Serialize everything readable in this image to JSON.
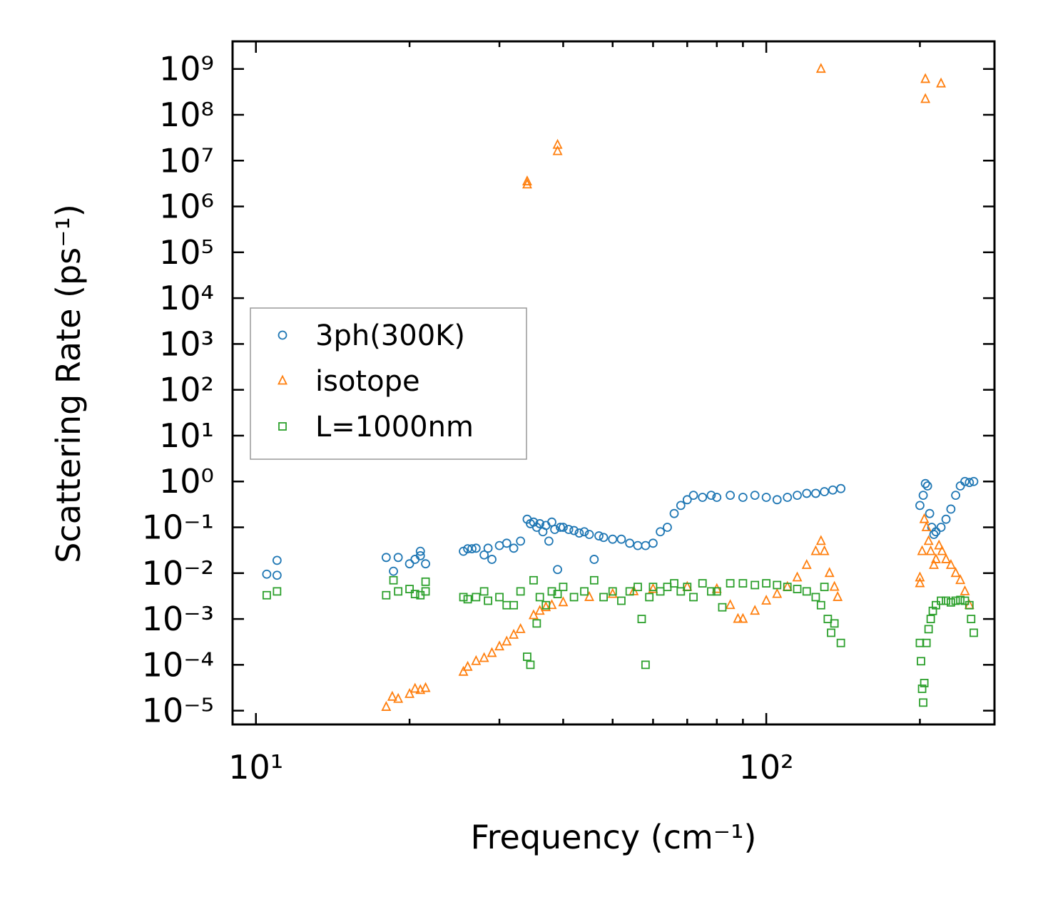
{
  "chart_data": {
    "type": "scatter",
    "title": "",
    "xlabel": "Frequency (cm⁻¹)",
    "ylabel": "Scattering Rate (ps⁻¹)",
    "xscale": "log",
    "yscale": "log",
    "xlim": [
      9.0,
      280
    ],
    "ylim": [
      5e-06,
      4000000000.0
    ],
    "x_ticks": [
      {
        "value": 10,
        "label": "10¹"
      },
      {
        "value": 100,
        "label": "10²"
      }
    ],
    "y_ticks": [
      {
        "value": 1e-05,
        "label": "10⁻⁵"
      },
      {
        "value": 0.0001,
        "label": "10⁻⁴"
      },
      {
        "value": 0.001,
        "label": "10⁻³"
      },
      {
        "value": 0.01,
        "label": "10⁻²"
      },
      {
        "value": 0.1,
        "label": "10⁻¹"
      },
      {
        "value": 1,
        "label": "10⁰"
      },
      {
        "value": 10,
        "label": "10¹"
      },
      {
        "value": 100,
        "label": "10²"
      },
      {
        "value": 1000.0,
        "label": "10³"
      },
      {
        "value": 10000.0,
        "label": "10⁴"
      },
      {
        "value": 100000.0,
        "label": "10⁵"
      },
      {
        "value": 1000000.0,
        "label": "10⁶"
      },
      {
        "value": 10000000.0,
        "label": "10⁷"
      },
      {
        "value": 100000000.0,
        "label": "10⁸"
      },
      {
        "value": 1000000000.0,
        "label": "10⁹"
      }
    ],
    "legend_position": "center-left",
    "series": [
      {
        "name": "3ph(300K)",
        "marker": "circle",
        "color": "#1f77b4",
        "points": [
          [
            10.5,
            0.0095
          ],
          [
            11.0,
            0.019
          ],
          [
            11.0,
            0.009
          ],
          [
            18.0,
            0.022
          ],
          [
            18.6,
            0.011
          ],
          [
            19.0,
            0.022
          ],
          [
            20.0,
            0.016
          ],
          [
            20.5,
            0.02
          ],
          [
            21.0,
            0.03
          ],
          [
            21.0,
            0.024
          ],
          [
            21.5,
            0.016
          ],
          [
            25.5,
            0.03
          ],
          [
            26.0,
            0.034
          ],
          [
            26.5,
            0.034
          ],
          [
            27.0,
            0.035
          ],
          [
            28.0,
            0.025
          ],
          [
            28.5,
            0.035
          ],
          [
            29.0,
            0.02
          ],
          [
            30.0,
            0.04
          ],
          [
            31.0,
            0.045
          ],
          [
            32.0,
            0.035
          ],
          [
            33.0,
            0.05
          ],
          [
            34.0,
            0.15
          ],
          [
            34.5,
            0.12
          ],
          [
            35.0,
            0.13
          ],
          [
            35.5,
            0.1
          ],
          [
            36.0,
            0.12
          ],
          [
            36.5,
            0.08
          ],
          [
            37.0,
            0.11
          ],
          [
            37.5,
            0.05
          ],
          [
            38.0,
            0.13
          ],
          [
            38.5,
            0.09
          ],
          [
            39.0,
            0.012
          ],
          [
            39.5,
            0.1
          ],
          [
            40.0,
            0.1
          ],
          [
            41.0,
            0.09
          ],
          [
            42.0,
            0.085
          ],
          [
            43.0,
            0.075
          ],
          [
            44.0,
            0.08
          ],
          [
            45.0,
            0.07
          ],
          [
            46.0,
            0.02
          ],
          [
            47.0,
            0.065
          ],
          [
            48.0,
            0.06
          ],
          [
            50.0,
            0.055
          ],
          [
            52.0,
            0.055
          ],
          [
            54.0,
            0.045
          ],
          [
            56.0,
            0.04
          ],
          [
            58.0,
            0.04
          ],
          [
            60.0,
            0.045
          ],
          [
            62.0,
            0.08
          ],
          [
            64.0,
            0.1
          ],
          [
            66.0,
            0.2
          ],
          [
            68.0,
            0.3
          ],
          [
            70.0,
            0.4
          ],
          [
            72.0,
            0.5
          ],
          [
            75.0,
            0.45
          ],
          [
            78.0,
            0.5
          ],
          [
            80.0,
            0.45
          ],
          [
            85.0,
            0.5
          ],
          [
            90.0,
            0.45
          ],
          [
            95.0,
            0.5
          ],
          [
            100.0,
            0.45
          ],
          [
            105.0,
            0.4
          ],
          [
            110.0,
            0.45
          ],
          [
            115.0,
            0.5
          ],
          [
            120.0,
            0.55
          ],
          [
            125.0,
            0.55
          ],
          [
            130.0,
            0.6
          ],
          [
            135.0,
            0.65
          ],
          [
            140.0,
            0.7
          ],
          [
            200.0,
            0.3
          ],
          [
            203.0,
            0.5
          ],
          [
            205.0,
            0.9
          ],
          [
            207.0,
            0.8
          ],
          [
            209.0,
            0.2
          ],
          [
            211.0,
            0.1
          ],
          [
            213.0,
            0.07
          ],
          [
            215.0,
            0.08
          ],
          [
            220.0,
            0.1
          ],
          [
            225.0,
            0.15
          ],
          [
            230.0,
            0.25
          ],
          [
            235.0,
            0.5
          ],
          [
            240.0,
            0.8
          ],
          [
            245.0,
            1.0
          ],
          [
            250.0,
            0.95
          ],
          [
            255.0,
            1.0
          ]
        ]
      },
      {
        "name": "isotope",
        "marker": "triangle",
        "color": "#ff7f0e",
        "points": [
          [
            18.0,
            1.2e-05
          ],
          [
            18.5,
            2e-05
          ],
          [
            19.0,
            1.8e-05
          ],
          [
            20.0,
            2.3e-05
          ],
          [
            20.5,
            3e-05
          ],
          [
            21.0,
            2.8e-05
          ],
          [
            21.5,
            3.1e-05
          ],
          [
            25.5,
            7e-05
          ],
          [
            26.0,
            9e-05
          ],
          [
            27.0,
            0.00012
          ],
          [
            28.0,
            0.00014
          ],
          [
            29.0,
            0.00018
          ],
          [
            30.0,
            0.00025
          ],
          [
            31.0,
            0.00032
          ],
          [
            32.0,
            0.00045
          ],
          [
            33.0,
            0.0006
          ],
          [
            34.0,
            3500000.0
          ],
          [
            34.0,
            3000000.0
          ],
          [
            35.0,
            0.0012
          ],
          [
            36.0,
            0.0015
          ],
          [
            37.0,
            0.0018
          ],
          [
            38.0,
            0.002
          ],
          [
            39.0,
            22000000.0
          ],
          [
            39.0,
            16000000.0
          ],
          [
            40.0,
            0.0023
          ],
          [
            45.0,
            0.003
          ],
          [
            50.0,
            0.0035
          ],
          [
            55.0,
            0.004
          ],
          [
            60.0,
            0.0045
          ],
          [
            70.0,
            0.005
          ],
          [
            80.0,
            0.0045
          ],
          [
            85.0,
            0.002
          ],
          [
            88.0,
            0.001
          ],
          [
            90.0,
            0.001
          ],
          [
            95.0,
            0.0015
          ],
          [
            100.0,
            0.0025
          ],
          [
            105.0,
            0.0035
          ],
          [
            110.0,
            0.005
          ],
          [
            115.0,
            0.008
          ],
          [
            120.0,
            0.015
          ],
          [
            125.0,
            0.03
          ],
          [
            128.0,
            0.05
          ],
          [
            130.0,
            0.03
          ],
          [
            133.0,
            0.01
          ],
          [
            136.0,
            0.005
          ],
          [
            138.0,
            0.003
          ],
          [
            128.0,
            1000000000.0
          ],
          [
            200.0,
            0.008
          ],
          [
            200.0,
            0.006
          ],
          [
            202.0,
            0.03
          ],
          [
            204.0,
            0.15
          ],
          [
            206.0,
            0.1
          ],
          [
            208.0,
            0.05
          ],
          [
            210.0,
            0.03
          ],
          [
            213.0,
            0.015
          ],
          [
            215.0,
            0.02
          ],
          [
            218.0,
            0.04
          ],
          [
            221.0,
            0.03
          ],
          [
            225.0,
            0.02
          ],
          [
            230.0,
            0.015
          ],
          [
            235.0,
            0.01
          ],
          [
            240.0,
            0.007
          ],
          [
            245.0,
            0.004
          ],
          [
            250.0,
            0.002
          ],
          [
            205.0,
            600000000.0
          ],
          [
            205.0,
            220000000.0
          ],
          [
            220.0,
            480000000.0
          ]
        ]
      },
      {
        "name": "L=1000nm",
        "marker": "square",
        "color": "#2ca02c",
        "points": [
          [
            10.5,
            0.0033
          ],
          [
            11.0,
            0.004
          ],
          [
            18.0,
            0.0033
          ],
          [
            18.6,
            0.007
          ],
          [
            19.0,
            0.004
          ],
          [
            20.0,
            0.0045
          ],
          [
            20.5,
            0.0035
          ],
          [
            21.0,
            0.0033
          ],
          [
            21.5,
            0.0065
          ],
          [
            21.5,
            0.004
          ],
          [
            25.5,
            0.003
          ],
          [
            26.0,
            0.0027
          ],
          [
            27.0,
            0.003
          ],
          [
            28.0,
            0.004
          ],
          [
            28.5,
            0.0025
          ],
          [
            30.0,
            0.003
          ],
          [
            31.0,
            0.002
          ],
          [
            32.0,
            0.002
          ],
          [
            33.0,
            0.004
          ],
          [
            34.0,
            0.00015
          ],
          [
            34.5,
            0.0001
          ],
          [
            35.0,
            0.007
          ],
          [
            35.5,
            0.0008
          ],
          [
            36.0,
            0.003
          ],
          [
            37.0,
            0.002
          ],
          [
            38.0,
            0.004
          ],
          [
            39.0,
            0.0035
          ],
          [
            40.0,
            0.005
          ],
          [
            42.0,
            0.003
          ],
          [
            44.0,
            0.004
          ],
          [
            46.0,
            0.007
          ],
          [
            48.0,
            0.003
          ],
          [
            50.0,
            0.004
          ],
          [
            52.0,
            0.0025
          ],
          [
            54.0,
            0.004
          ],
          [
            56.0,
            0.005
          ],
          [
            57.0,
            0.001
          ],
          [
            58.0,
            0.0001
          ],
          [
            59.0,
            0.003
          ],
          [
            60.0,
            0.005
          ],
          [
            62.0,
            0.004
          ],
          [
            64.0,
            0.005
          ],
          [
            66.0,
            0.006
          ],
          [
            68.0,
            0.004
          ],
          [
            70.0,
            0.005
          ],
          [
            72.0,
            0.003
          ],
          [
            75.0,
            0.006
          ],
          [
            78.0,
            0.004
          ],
          [
            80.0,
            0.004
          ],
          [
            82.0,
            0.0018
          ],
          [
            85.0,
            0.006
          ],
          [
            90.0,
            0.006
          ],
          [
            95.0,
            0.0055
          ],
          [
            100.0,
            0.006
          ],
          [
            105.0,
            0.0055
          ],
          [
            110.0,
            0.005
          ],
          [
            115.0,
            0.0045
          ],
          [
            120.0,
            0.004
          ],
          [
            125.0,
            0.003
          ],
          [
            128.0,
            0.002
          ],
          [
            130.0,
            0.005
          ],
          [
            132.0,
            0.001
          ],
          [
            134.0,
            0.0005
          ],
          [
            136.0,
            0.0008
          ],
          [
            140.0,
            0.0003
          ],
          [
            200.0,
            0.0003
          ],
          [
            201.0,
            0.00012
          ],
          [
            202.0,
            3e-05
          ],
          [
            203.0,
            1.5e-05
          ],
          [
            204.0,
            4e-05
          ],
          [
            206.0,
            0.0003
          ],
          [
            208.0,
            0.0006
          ],
          [
            210.0,
            0.001
          ],
          [
            212.0,
            0.0015
          ],
          [
            215.0,
            0.002
          ],
          [
            220.0,
            0.0025
          ],
          [
            225.0,
            0.0025
          ],
          [
            230.0,
            0.0023
          ],
          [
            235.0,
            0.0025
          ],
          [
            240.0,
            0.0026
          ],
          [
            245.0,
            0.0025
          ],
          [
            250.0,
            0.002
          ],
          [
            252.0,
            0.001
          ],
          [
            255.0,
            0.0005
          ]
        ]
      }
    ]
  }
}
